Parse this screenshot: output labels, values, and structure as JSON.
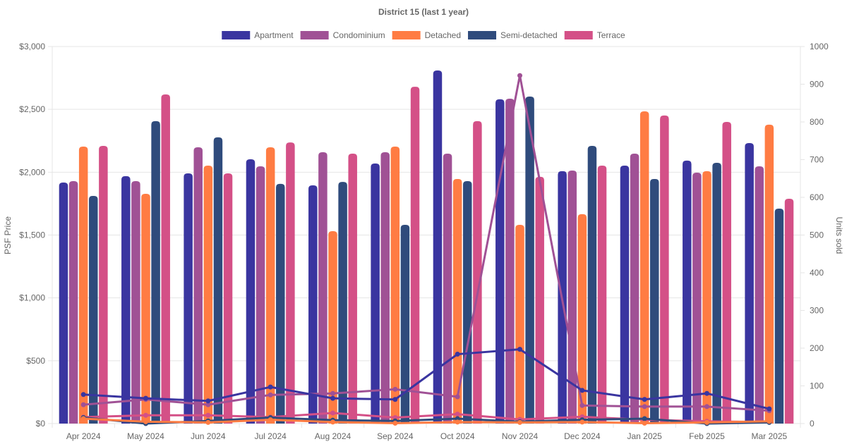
{
  "chart_data": {
    "type": "bar",
    "title": "District 15 (last 1 year)",
    "categories": [
      "Apr 2024",
      "May 2024",
      "Jun 2024",
      "Jul 2024",
      "Aug 2024",
      "Sep 2024",
      "Oct 2024",
      "Nov 2024",
      "Dec 2024",
      "Jan 2025",
      "Feb 2025",
      "Mar 2025"
    ],
    "ylabel": "PSF Price",
    "y2label": "Units sold",
    "ylim": [
      0,
      3000
    ],
    "y2lim": [
      0,
      1000
    ],
    "yticks": [
      "$0",
      "$500",
      "$1,000",
      "$1,500",
      "$2,000",
      "$2,500",
      "$3,000"
    ],
    "ytick_values": [
      0,
      500,
      1000,
      1500,
      2000,
      2500,
      3000
    ],
    "y2ticks": [
      "0",
      "100",
      "200",
      "300",
      "400",
      "500",
      "600",
      "700",
      "800",
      "900",
      "1000"
    ],
    "y2tick_values": [
      0,
      100,
      200,
      300,
      400,
      500,
      600,
      700,
      800,
      900,
      1000
    ],
    "grid": true,
    "legend_position": "top-center",
    "series": [
      {
        "name": "Apartment",
        "color": "#3a35a0",
        "psf": [
          1918,
          1968,
          1991,
          2103,
          1895,
          2069,
          2809,
          2580,
          2008,
          2052,
          2092,
          2232
        ],
        "units": [
          77,
          67,
          60,
          97,
          67,
          64,
          184,
          197,
          88,
          64,
          80,
          39
        ]
      },
      {
        "name": "Condominium",
        "color": "#a05195",
        "psf": [
          1929,
          1929,
          2198,
          2047,
          2159,
          2159,
          2148,
          2585,
          2013,
          2148,
          1996,
          2047
        ],
        "units": [
          50,
          64,
          50,
          76,
          80,
          91,
          71,
          923,
          48,
          45,
          45,
          34
        ]
      },
      {
        "name": "Detached",
        "color": "#ff7c43",
        "psf": [
          2204,
          1828,
          2052,
          2198,
          1531,
          2204,
          1946,
          1581,
          1666,
          2484,
          2008,
          2378
        ],
        "units": [
          13,
          5,
          3,
          10,
          4,
          1,
          4,
          3,
          4,
          1,
          3,
          6
        ]
      },
      {
        "name": "Semi-detached",
        "color": "#2f4b7c",
        "psf": [
          1811,
          2406,
          2277,
          1907,
          1923,
          1581,
          1929,
          2602,
          2209,
          1946,
          2075,
          1710
        ],
        "units": [
          16,
          0,
          7,
          16,
          9,
          7,
          13,
          5,
          10,
          13,
          0,
          3
        ]
      },
      {
        "name": "Terrace",
        "color": "#d45087",
        "psf": [
          2209,
          2619,
          1991,
          2237,
          2148,
          2680,
          2406,
          1963,
          2052,
          2451,
          2400,
          1789
        ],
        "units": [
          17,
          22,
          22,
          17,
          28,
          16,
          25,
          11,
          18,
          10,
          6,
          4
        ]
      }
    ]
  }
}
